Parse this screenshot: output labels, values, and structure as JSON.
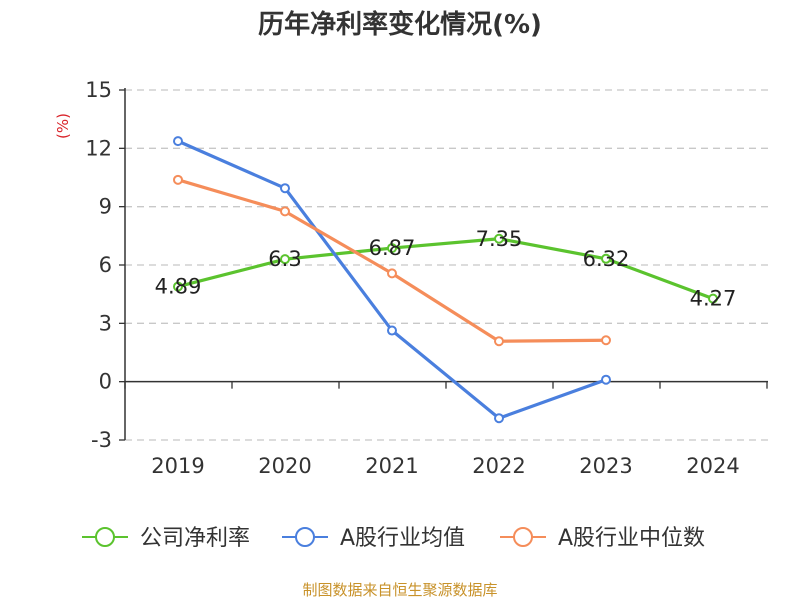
{
  "chart_data": {
    "type": "line",
    "title": "历年净利率变化情况(%)",
    "ylabel": "(%)",
    "xlabel": "",
    "categories": [
      "2019",
      "2020",
      "2021",
      "2022",
      "2023",
      "2024"
    ],
    "ylim": [
      -3,
      15
    ],
    "yticks": [
      -3,
      0,
      3,
      6,
      9,
      12,
      15
    ],
    "grid": true,
    "legend_position": "bottom",
    "series": [
      {
        "name": "公司净利率",
        "color": "#5bc32e",
        "values": [
          4.89,
          6.3,
          6.87,
          7.35,
          6.32,
          4.27
        ],
        "labels": [
          "4.89",
          "6.3",
          "6.87",
          "7.35",
          "6.32",
          "4.27"
        ]
      },
      {
        "name": "A股行业均值",
        "color": "#4a7fde",
        "values": [
          12.37,
          9.95,
          2.63,
          -1.88,
          0.1,
          null
        ]
      },
      {
        "name": "A股行业中位数",
        "color": "#f58d5a",
        "values": [
          10.38,
          8.76,
          5.57,
          2.08,
          2.13,
          null
        ]
      }
    ]
  },
  "footer": {
    "source": "制图数据来自恒生聚源数据库"
  }
}
